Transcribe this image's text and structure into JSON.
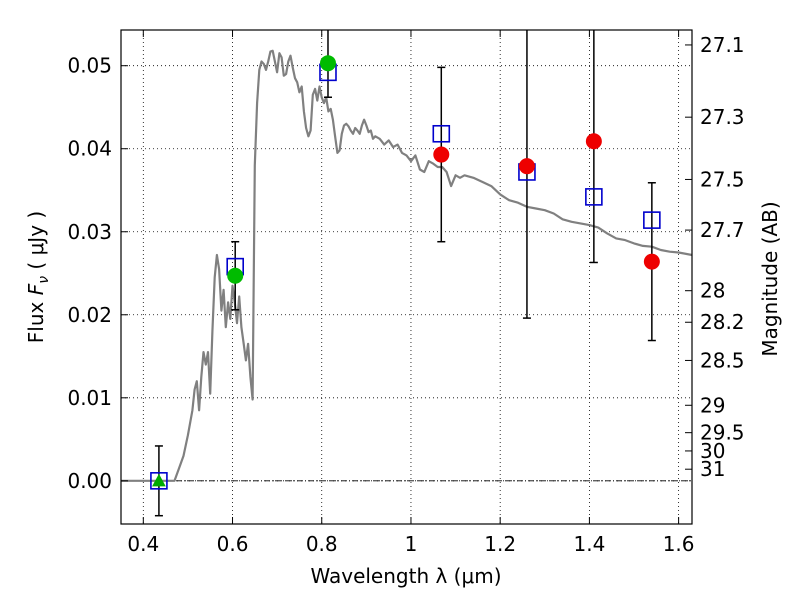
{
  "chart_data": {
    "type": "scatter",
    "xlabel": "Wavelength  λ (μm)",
    "ylabel": "Flux  F_ν  ( μJy )",
    "ylabel_parts": {
      "pre": "Flux  ",
      "sym": "F",
      "sub": "ν",
      "post": "  ( μJy )"
    },
    "y2label": "Magnitude (AB)",
    "xlim": [
      0.35,
      1.63
    ],
    "ylim": [
      -0.0052,
      0.0543
    ],
    "x_ticks": [
      0.4,
      0.6,
      0.8,
      1.0,
      1.2,
      1.4,
      1.6
    ],
    "x_tick_labels": [
      "0.4",
      "0.6",
      "0.8",
      "1",
      "1.2",
      "1.4",
      "1.6"
    ],
    "y_ticks": [
      0.0,
      0.01,
      0.02,
      0.03,
      0.04,
      0.05
    ],
    "y_tick_labels": [
      "0.00",
      "0.01",
      "0.02",
      "0.03",
      "0.04",
      "0.05"
    ],
    "mag_ticks": [
      {
        "label": "27.1",
        "flux": 0.0525
      },
      {
        "label": "27.3",
        "flux": 0.0438
      },
      {
        "label": "27.5",
        "flux": 0.0363
      },
      {
        "label": "27.7",
        "flux": 0.0302
      },
      {
        "label": "28",
        "flux": 0.0229
      },
      {
        "label": "28.2",
        "flux": 0.0191
      },
      {
        "label": "28.5",
        "flux": 0.0145
      },
      {
        "label": "29",
        "flux": 0.0091
      },
      {
        "label": "29.5",
        "flux": 0.0058
      },
      {
        "label": "30",
        "flux": 0.0036
      },
      {
        "label": "31",
        "flux": 0.0014
      }
    ],
    "grid": true,
    "model_spectrum": {
      "color": "#808080",
      "points": [
        [
          0.35,
          0.0
        ],
        [
          0.47,
          0.0
        ],
        [
          0.48,
          0.0015
        ],
        [
          0.49,
          0.003
        ],
        [
          0.5,
          0.0055
        ],
        [
          0.51,
          0.0085
        ],
        [
          0.515,
          0.011
        ],
        [
          0.52,
          0.012
        ],
        [
          0.525,
          0.0085
        ],
        [
          0.53,
          0.0125
        ],
        [
          0.535,
          0.0155
        ],
        [
          0.54,
          0.014
        ],
        [
          0.545,
          0.0155
        ],
        [
          0.55,
          0.0105
        ],
        [
          0.555,
          0.018
        ],
        [
          0.56,
          0.0245
        ],
        [
          0.565,
          0.0272
        ],
        [
          0.57,
          0.0255
        ],
        [
          0.575,
          0.0205
        ],
        [
          0.58,
          0.023
        ],
        [
          0.585,
          0.0185
        ],
        [
          0.59,
          0.0215
        ],
        [
          0.595,
          0.0195
        ],
        [
          0.6,
          0.0235
        ],
        [
          0.605,
          0.0215
        ],
        [
          0.61,
          0.019
        ],
        [
          0.615,
          0.0222
        ],
        [
          0.62,
          0.0185
        ],
        [
          0.625,
          0.0165
        ],
        [
          0.63,
          0.0145
        ],
        [
          0.635,
          0.0165
        ],
        [
          0.64,
          0.0125
        ],
        [
          0.645,
          0.0098
        ],
        [
          0.65,
          0.038
        ],
        [
          0.655,
          0.0455
        ],
        [
          0.66,
          0.0495
        ],
        [
          0.665,
          0.0505
        ],
        [
          0.67,
          0.0502
        ],
        [
          0.675,
          0.0495
        ],
        [
          0.68,
          0.0505
        ],
        [
          0.685,
          0.0517
        ],
        [
          0.69,
          0.0518
        ],
        [
          0.695,
          0.0505
        ],
        [
          0.7,
          0.0492
        ],
        [
          0.705,
          0.0515
        ],
        [
          0.71,
          0.051
        ],
        [
          0.715,
          0.0488
        ],
        [
          0.72,
          0.049
        ],
        [
          0.725,
          0.0505
        ],
        [
          0.73,
          0.0512
        ],
        [
          0.735,
          0.0498
        ],
        [
          0.74,
          0.0485
        ],
        [
          0.745,
          0.048
        ],
        [
          0.75,
          0.0468
        ],
        [
          0.755,
          0.0475
        ],
        [
          0.76,
          0.0445
        ],
        [
          0.765,
          0.0425
        ],
        [
          0.77,
          0.0415
        ],
        [
          0.775,
          0.0422
        ],
        [
          0.78,
          0.0465
        ],
        [
          0.785,
          0.0472
        ],
        [
          0.79,
          0.0458
        ],
        [
          0.795,
          0.0475
        ],
        [
          0.8,
          0.0462
        ],
        [
          0.805,
          0.0455
        ],
        [
          0.81,
          0.0462
        ],
        [
          0.815,
          0.0445
        ],
        [
          0.82,
          0.0448
        ],
        [
          0.825,
          0.0435
        ],
        [
          0.83,
          0.0415
        ],
        [
          0.835,
          0.0395
        ],
        [
          0.84,
          0.0398
        ],
        [
          0.845,
          0.0418
        ],
        [
          0.85,
          0.0428
        ],
        [
          0.855,
          0.043
        ],
        [
          0.86,
          0.0427
        ],
        [
          0.865,
          0.0422
        ],
        [
          0.87,
          0.0418
        ],
        [
          0.875,
          0.0425
        ],
        [
          0.88,
          0.0422
        ],
        [
          0.885,
          0.0418
        ],
        [
          0.89,
          0.0428
        ],
        [
          0.895,
          0.0435
        ],
        [
          0.9,
          0.0428
        ],
        [
          0.905,
          0.042
        ],
        [
          0.91,
          0.0422
        ],
        [
          0.915,
          0.0412
        ],
        [
          0.92,
          0.0415
        ],
        [
          0.93,
          0.0412
        ],
        [
          0.94,
          0.0405
        ],
        [
          0.95,
          0.041
        ],
        [
          0.96,
          0.0402
        ],
        [
          0.97,
          0.0405
        ],
        [
          0.98,
          0.0395
        ],
        [
          0.99,
          0.0392
        ],
        [
          1.0,
          0.0385
        ],
        [
          1.01,
          0.0392
        ],
        [
          1.02,
          0.0375
        ],
        [
          1.03,
          0.0372
        ],
        [
          1.04,
          0.0385
        ],
        [
          1.05,
          0.0382
        ],
        [
          1.06,
          0.0378
        ],
        [
          1.07,
          0.0378
        ],
        [
          1.08,
          0.0372
        ],
        [
          1.09,
          0.0355
        ],
        [
          1.1,
          0.0368
        ],
        [
          1.11,
          0.0365
        ],
        [
          1.12,
          0.0368
        ],
        [
          1.14,
          0.0365
        ],
        [
          1.16,
          0.036
        ],
        [
          1.18,
          0.0355
        ],
        [
          1.2,
          0.0345
        ],
        [
          1.22,
          0.0338
        ],
        [
          1.24,
          0.0335
        ],
        [
          1.26,
          0.033
        ],
        [
          1.28,
          0.0328
        ],
        [
          1.3,
          0.0326
        ],
        [
          1.32,
          0.0322
        ],
        [
          1.34,
          0.0315
        ],
        [
          1.36,
          0.0312
        ],
        [
          1.38,
          0.031
        ],
        [
          1.4,
          0.0308
        ],
        [
          1.42,
          0.0305
        ],
        [
          1.44,
          0.0298
        ],
        [
          1.46,
          0.0292
        ],
        [
          1.48,
          0.029
        ],
        [
          1.5,
          0.0286
        ],
        [
          1.52,
          0.0283
        ],
        [
          1.54,
          0.0282
        ],
        [
          1.56,
          0.0278
        ],
        [
          1.58,
          0.0276
        ],
        [
          1.6,
          0.0275
        ],
        [
          1.63,
          0.0272
        ]
      ]
    },
    "model_band_fluxes": {
      "color": "#0000cc",
      "marker": "open-square",
      "points": [
        {
          "x": 0.435,
          "y": 0.0
        },
        {
          "x": 0.606,
          "y": 0.0258
        },
        {
          "x": 0.814,
          "y": 0.0492
        },
        {
          "x": 1.068,
          "y": 0.0418
        },
        {
          "x": 1.26,
          "y": 0.0372
        },
        {
          "x": 1.41,
          "y": 0.0342
        },
        {
          "x": 1.54,
          "y": 0.0314
        }
      ]
    },
    "observed": {
      "points": [
        {
          "x": 0.435,
          "y": 0.0,
          "yerr": 0.0042,
          "color": "#00aa00",
          "marker": "triangle"
        },
        {
          "x": 0.606,
          "y": 0.0247,
          "yerr": 0.0041,
          "color": "#00bb00",
          "marker": "circle"
        },
        {
          "x": 0.814,
          "y": 0.0503,
          "yerr": 0.0041,
          "color": "#00bb00",
          "marker": "circle"
        },
        {
          "x": 1.068,
          "y": 0.0393,
          "yerr": 0.0105,
          "color": "#ee0000",
          "marker": "circle"
        },
        {
          "x": 1.26,
          "y": 0.0379,
          "yerr": 0.0183,
          "color": "#ee0000",
          "marker": "circle"
        },
        {
          "x": 1.41,
          "y": 0.0409,
          "yerr": 0.0146,
          "color": "#ee0000",
          "marker": "circle"
        },
        {
          "x": 1.54,
          "y": 0.0264,
          "yerr": 0.0095,
          "color": "#ee0000",
          "marker": "circle"
        }
      ]
    }
  }
}
